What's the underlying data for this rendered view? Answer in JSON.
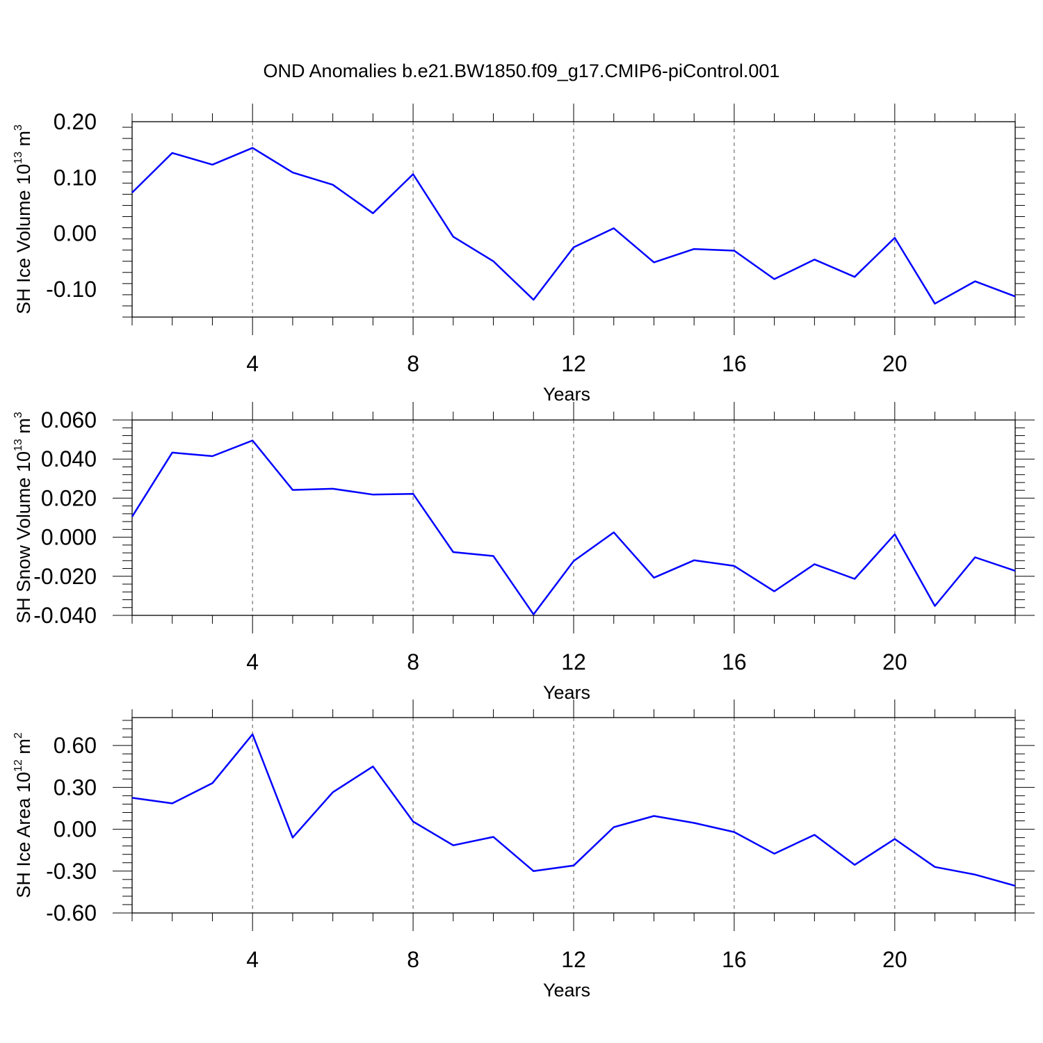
{
  "title": "OND Anomalies b.e21.BW1850.f09_g17.CMIP6-piControl.001",
  "colors": {
    "line": "#0000ff",
    "axis": "#000000",
    "grid": "#555555"
  },
  "chart_data": [
    {
      "type": "line",
      "ylabel": {
        "text": "SH Ice Volume 10",
        "sup": "13",
        "unit": " m",
        "unit_sup": "3"
      },
      "xlabel": "Years",
      "xlim": [
        1,
        23
      ],
      "ylim": [
        -0.15,
        0.2
      ],
      "x_ticks": [
        4,
        8,
        12,
        16,
        20
      ],
      "x_tick_labels": [
        "4",
        "8",
        "12",
        "16",
        "20"
      ],
      "y_ticks": [
        -0.1,
        0.0,
        0.1,
        0.2
      ],
      "y_tick_labels": [
        "-0.10",
        "0.00",
        "0.10",
        "0.20"
      ],
      "grid": "vertical dashed at major x ticks",
      "x": [
        1,
        2,
        3,
        4,
        5,
        6,
        7,
        8,
        9,
        10,
        11,
        12,
        13,
        14,
        15,
        16,
        17,
        18,
        19,
        20,
        21,
        22,
        23
      ],
      "values": [
        0.073,
        0.144,
        0.123,
        0.153,
        0.109,
        0.087,
        0.036,
        0.106,
        -0.006,
        -0.05,
        -0.119,
        -0.025,
        0.009,
        -0.052,
        -0.028,
        -0.031,
        -0.082,
        -0.047,
        -0.078,
        -0.008,
        -0.126,
        -0.086,
        -0.113
      ]
    },
    {
      "type": "line",
      "ylabel": {
        "text": "SH Snow Volume 10",
        "sup": "13",
        "unit": " m",
        "unit_sup": "3"
      },
      "xlabel": "Years",
      "xlim": [
        1,
        23
      ],
      "ylim": [
        -0.04,
        0.06
      ],
      "x_ticks": [
        4,
        8,
        12,
        16,
        20
      ],
      "x_tick_labels": [
        "4",
        "8",
        "12",
        "16",
        "20"
      ],
      "y_ticks": [
        -0.04,
        -0.02,
        0.0,
        0.02,
        0.04,
        0.06
      ],
      "y_tick_labels": [
        "-0.040",
        "-0.020",
        "0.000",
        "0.020",
        "0.040",
        "0.060"
      ],
      "grid": "vertical dashed at major x ticks",
      "x": [
        1,
        2,
        3,
        4,
        5,
        6,
        7,
        8,
        9,
        10,
        11,
        12,
        13,
        14,
        15,
        16,
        17,
        18,
        19,
        20,
        21,
        22,
        23
      ],
      "values": [
        0.0105,
        0.0433,
        0.0415,
        0.0495,
        0.0242,
        0.0248,
        0.0218,
        0.0222,
        -0.0076,
        -0.0096,
        -0.0395,
        -0.0122,
        0.0025,
        -0.0207,
        -0.0118,
        -0.0147,
        -0.0277,
        -0.0138,
        -0.0213,
        0.0015,
        -0.0352,
        -0.0103,
        -0.0172
      ]
    },
    {
      "type": "line",
      "ylabel": {
        "text": "SH Ice Area 10",
        "sup": "12",
        "unit": " m",
        "unit_sup": "2"
      },
      "xlabel": "Years",
      "xlim": [
        1,
        23
      ],
      "ylim": [
        -0.6,
        0.8
      ],
      "x_ticks": [
        4,
        8,
        12,
        16,
        20
      ],
      "x_tick_labels": [
        "4",
        "8",
        "12",
        "16",
        "20"
      ],
      "y_ticks": [
        -0.6,
        -0.3,
        0.0,
        0.3,
        0.6
      ],
      "y_tick_labels": [
        "-0.60",
        "-0.30",
        "0.00",
        "0.30",
        "0.60"
      ],
      "grid": "vertical dashed at major x ticks",
      "x": [
        1,
        2,
        3,
        4,
        5,
        6,
        7,
        8,
        9,
        10,
        11,
        12,
        13,
        14,
        15,
        16,
        17,
        18,
        19,
        20,
        21,
        22,
        23
      ],
      "values": [
        0.225,
        0.185,
        0.33,
        0.68,
        -0.06,
        0.265,
        0.45,
        0.055,
        -0.115,
        -0.055,
        -0.3,
        -0.26,
        0.015,
        0.095,
        0.045,
        -0.02,
        -0.175,
        -0.04,
        -0.255,
        -0.07,
        -0.27,
        -0.325,
        -0.405
      ]
    }
  ]
}
